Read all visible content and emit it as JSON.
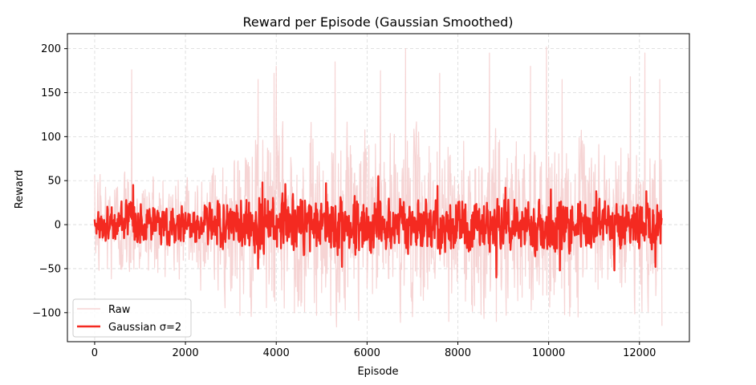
{
  "chart_data": {
    "type": "line",
    "title": "Reward per Episode (Gaussian Smoothed)",
    "xlabel": "Episode",
    "ylabel": "Reward",
    "xlim": [
      -600,
      13100
    ],
    "ylim": [
      -133,
      217
    ],
    "x_ticks": [
      0,
      2000,
      4000,
      6000,
      8000,
      10000,
      12000
    ],
    "y_ticks": [
      -100,
      -50,
      0,
      50,
      100,
      150,
      200
    ],
    "x_tick_labels": [
      "0",
      "2000",
      "4000",
      "6000",
      "8000",
      "10000",
      "12000"
    ],
    "y_tick_labels": [
      "−100",
      "−50",
      "0",
      "50",
      "100",
      "150",
      "200"
    ],
    "grid": true,
    "legend_position": "lower-left",
    "x_range": [
      0,
      12500
    ],
    "series": [
      {
        "name": "Raw",
        "color": "#f4cccc",
        "opacity": 0.85,
        "line_width": 1.2,
        "envelope_upper": [
          [
            0,
            68
          ],
          [
            500,
            62
          ],
          [
            800,
            70
          ],
          [
            1000,
            60
          ],
          [
            1500,
            62
          ],
          [
            2000,
            62
          ],
          [
            2600,
            78
          ],
          [
            3000,
            95
          ],
          [
            3500,
            105
          ],
          [
            4000,
            118
          ],
          [
            4500,
            120
          ],
          [
            5000,
            118
          ],
          [
            5500,
            122
          ],
          [
            6000,
            120
          ],
          [
            6500,
            115
          ],
          [
            7000,
            118
          ],
          [
            7500,
            115
          ],
          [
            8000,
            112
          ],
          [
            8500,
            112
          ],
          [
            9000,
            110
          ],
          [
            9500,
            108
          ],
          [
            10000,
            110
          ],
          [
            10500,
            108
          ],
          [
            11000,
            105
          ],
          [
            11500,
            102
          ],
          [
            12000,
            100
          ],
          [
            12500,
            95
          ]
        ],
        "envelope_lower": [
          [
            0,
            -62
          ],
          [
            500,
            -70
          ],
          [
            1000,
            -68
          ],
          [
            1500,
            -68
          ],
          [
            2000,
            -70
          ],
          [
            2600,
            -75
          ],
          [
            3000,
            -88
          ],
          [
            3500,
            -92
          ],
          [
            4000,
            -95
          ],
          [
            4500,
            -92
          ],
          [
            5000,
            -95
          ],
          [
            5500,
            -92
          ],
          [
            6000,
            -92
          ],
          [
            6500,
            -88
          ],
          [
            7000,
            -90
          ],
          [
            7500,
            -88
          ],
          [
            8000,
            -90
          ],
          [
            8500,
            -92
          ],
          [
            9000,
            -90
          ],
          [
            9500,
            -90
          ],
          [
            10000,
            -92
          ],
          [
            10500,
            -90
          ],
          [
            11000,
            -88
          ],
          [
            11500,
            -88
          ],
          [
            12000,
            -88
          ],
          [
            12500,
            -85
          ]
        ],
        "spikes": [
          [
            820,
            176
          ],
          [
            3600,
            165
          ],
          [
            3950,
            172
          ],
          [
            4000,
            180
          ],
          [
            5300,
            185
          ],
          [
            6300,
            175
          ],
          [
            6850,
            200
          ],
          [
            7600,
            172
          ],
          [
            8700,
            195
          ],
          [
            9600,
            180
          ],
          [
            9950,
            202
          ],
          [
            10300,
            165
          ],
          [
            11800,
            168
          ],
          [
            12120,
            195
          ],
          [
            12450,
            165
          ],
          [
            3200,
            -103
          ],
          [
            4400,
            -100
          ],
          [
            5200,
            -103
          ],
          [
            7800,
            -110
          ],
          [
            8850,
            -110
          ],
          [
            10650,
            -105
          ],
          [
            12500,
            -115
          ]
        ]
      },
      {
        "name": "Gaussian σ=2",
        "color": "#f42a21",
        "line_width": 2.4,
        "envelope_upper": [
          [
            0,
            22
          ],
          [
            800,
            28
          ],
          [
            1500,
            20
          ],
          [
            2000,
            20
          ],
          [
            2600,
            22
          ],
          [
            3000,
            28
          ],
          [
            3500,
            32
          ],
          [
            4000,
            30
          ],
          [
            4500,
            28
          ],
          [
            5000,
            30
          ],
          [
            5500,
            28
          ],
          [
            6000,
            28
          ],
          [
            6500,
            28
          ],
          [
            7000,
            28
          ],
          [
            7500,
            26
          ],
          [
            8000,
            26
          ],
          [
            8500,
            24
          ],
          [
            9000,
            24
          ],
          [
            9500,
            25
          ],
          [
            10000,
            25
          ],
          [
            10500,
            24
          ],
          [
            11000,
            24
          ],
          [
            11500,
            23
          ],
          [
            12000,
            22
          ],
          [
            12500,
            20
          ]
        ],
        "envelope_lower": [
          [
            0,
            -18
          ],
          [
            800,
            -25
          ],
          [
            1500,
            -25
          ],
          [
            2000,
            -25
          ],
          [
            2600,
            -28
          ],
          [
            3000,
            -35
          ],
          [
            3500,
            -38
          ],
          [
            4000,
            -40
          ],
          [
            4500,
            -38
          ],
          [
            5000,
            -40
          ],
          [
            5500,
            -38
          ],
          [
            6000,
            -38
          ],
          [
            6500,
            -36
          ],
          [
            7000,
            -36
          ],
          [
            7500,
            -36
          ],
          [
            8000,
            -38
          ],
          [
            8500,
            -38
          ],
          [
            9000,
            -38
          ],
          [
            9500,
            -38
          ],
          [
            10000,
            -38
          ],
          [
            10500,
            -36
          ],
          [
            11000,
            -36
          ],
          [
            11500,
            -35
          ],
          [
            12000,
            -35
          ],
          [
            12500,
            -30
          ]
        ],
        "spikes": [
          [
            850,
            45
          ],
          [
            3700,
            48
          ],
          [
            4200,
            46
          ],
          [
            5100,
            47
          ],
          [
            6250,
            55
          ],
          [
            7550,
            44
          ],
          [
            9050,
            42
          ],
          [
            10050,
            40
          ],
          [
            11050,
            38
          ],
          [
            12150,
            38
          ],
          [
            3600,
            -50
          ],
          [
            5450,
            -48
          ],
          [
            8850,
            -60
          ],
          [
            10250,
            -52
          ],
          [
            11450,
            -52
          ],
          [
            12350,
            -48
          ]
        ]
      }
    ]
  }
}
